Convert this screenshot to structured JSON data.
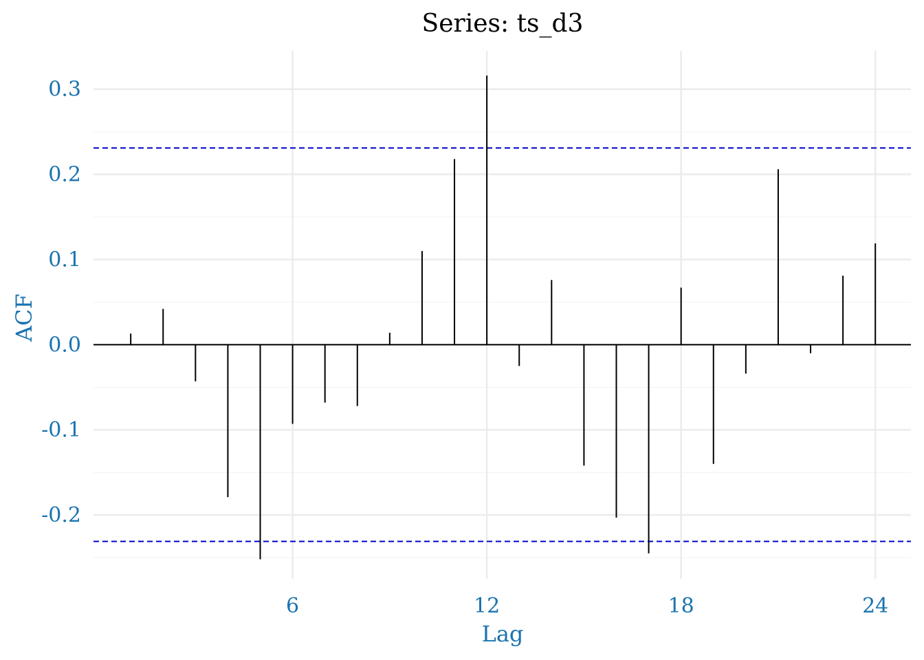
{
  "chart_data": {
    "type": "bar",
    "title": "Series: ts_d3",
    "xlabel": "Lag",
    "ylabel": "ACF",
    "x": [
      1,
      2,
      3,
      4,
      5,
      6,
      7,
      8,
      9,
      10,
      11,
      12,
      13,
      14,
      15,
      16,
      17,
      18,
      19,
      20,
      21,
      22,
      23,
      24
    ],
    "values": [
      0.013,
      0.042,
      -0.043,
      -0.179,
      -0.252,
      -0.093,
      -0.068,
      -0.072,
      0.014,
      0.11,
      0.218,
      0.316,
      -0.025,
      0.076,
      -0.142,
      -0.203,
      -0.245,
      0.067,
      -0.14,
      -0.034,
      0.206,
      -0.01,
      0.081,
      0.119
    ],
    "confidence_interval": [
      -0.231,
      0.231
    ],
    "xlim": [
      -0.15,
      25.1
    ],
    "ylim": [
      -0.275,
      0.345
    ],
    "x_ticks": [
      6,
      12,
      18,
      24
    ],
    "x_tick_labels": [
      "6",
      "12",
      "18",
      "24"
    ],
    "y_ticks": [
      -0.2,
      -0.1,
      0.0,
      0.1,
      0.2,
      0.3
    ],
    "y_tick_labels": [
      "-0.2",
      "-0.1",
      "0.0",
      "0.1",
      "0.2",
      "0.3"
    ],
    "grid": true,
    "colors": {
      "bars": "#000000",
      "confidence_interval": "#0000cc",
      "axis_text": "#1a73b0",
      "grid": "#ebebeb"
    }
  }
}
